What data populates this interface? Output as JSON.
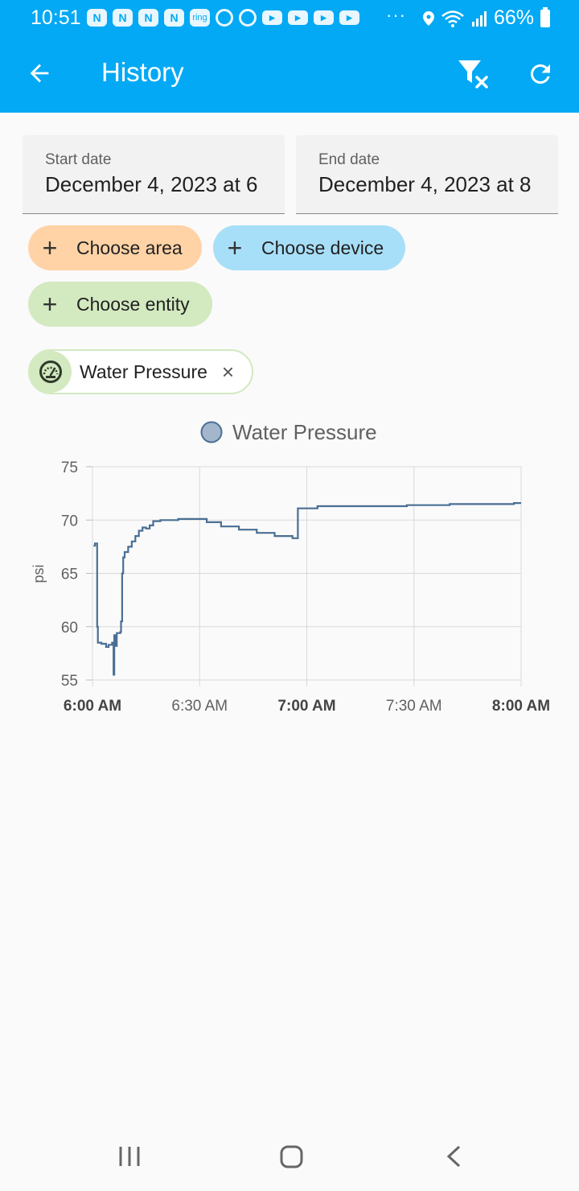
{
  "status_bar": {
    "time": "10:51",
    "battery": "66%",
    "notification_icons": [
      "N",
      "N",
      "N",
      "N",
      "ring",
      "circle",
      "circle",
      "▶",
      "▶",
      "▶",
      "▶"
    ],
    "overflow": "···"
  },
  "toolbar": {
    "title": "History",
    "back_icon": "arrow-back-icon",
    "filter_clear_icon": "filter-remove-icon",
    "refresh_icon": "refresh-icon"
  },
  "dates": {
    "start": {
      "label": "Start date",
      "value": "December 4, 2023 at 6"
    },
    "end": {
      "label": "End date",
      "value": "December 4, 2023 at 8"
    }
  },
  "targets": {
    "area": "Choose area",
    "device": "Choose device",
    "entity": "Choose entity",
    "plus": "+"
  },
  "selected_entity": {
    "label": "Water Pressure",
    "icon": "gauge-icon",
    "remove": "×"
  },
  "colors": {
    "accent": "#03a9f4",
    "series": "#4a6f94"
  },
  "chart_data": {
    "type": "line",
    "legend": "Water Pressure",
    "ylabel": "psi",
    "ylim": [
      55,
      75
    ],
    "yticks": [
      "75",
      "70",
      "65",
      "60",
      "55"
    ],
    "x_range_minutes": [
      0,
      120
    ],
    "xticks": [
      {
        "label": "6:00 AM",
        "minute": 0,
        "bold": true
      },
      {
        "label": "6:30 AM",
        "minute": 30,
        "bold": false
      },
      {
        "label": "7:00 AM",
        "minute": 60,
        "bold": true
      },
      {
        "label": "7:30 AM",
        "minute": 90,
        "bold": false
      },
      {
        "label": "8:00 AM",
        "minute": 120,
        "bold": true
      }
    ],
    "series": [
      {
        "name": "Water Pressure",
        "step": true,
        "points": [
          [
            0.3,
            67.6
          ],
          [
            0.7,
            67.8
          ],
          [
            1.3,
            60
          ],
          [
            1.5,
            58.5
          ],
          [
            2.5,
            58.4
          ],
          [
            3.8,
            58.1
          ],
          [
            4.5,
            58.3
          ],
          [
            5.5,
            58.5
          ],
          [
            5.9,
            55.5
          ],
          [
            6.1,
            59.2
          ],
          [
            6.4,
            58.2
          ],
          [
            6.8,
            59.4
          ],
          [
            7.8,
            59.5
          ],
          [
            8.0,
            60.5
          ],
          [
            8.3,
            65
          ],
          [
            8.6,
            66.5
          ],
          [
            9.0,
            67
          ],
          [
            10,
            67.5
          ],
          [
            11,
            68
          ],
          [
            12,
            68.5
          ],
          [
            13,
            69
          ],
          [
            14,
            69.3
          ],
          [
            15,
            69.2
          ],
          [
            16,
            69.5
          ],
          [
            17,
            69.9
          ],
          [
            19,
            70
          ],
          [
            24,
            70.1
          ],
          [
            32,
            69.8
          ],
          [
            36,
            69.4
          ],
          [
            41,
            69.1
          ],
          [
            46,
            68.8
          ],
          [
            51,
            68.5
          ],
          [
            56,
            68.3
          ],
          [
            57.5,
            71.1
          ],
          [
            63,
            71.3
          ],
          [
            88,
            71.4
          ],
          [
            100,
            71.5
          ],
          [
            118,
            71.6
          ],
          [
            120,
            71.6
          ]
        ]
      }
    ]
  }
}
